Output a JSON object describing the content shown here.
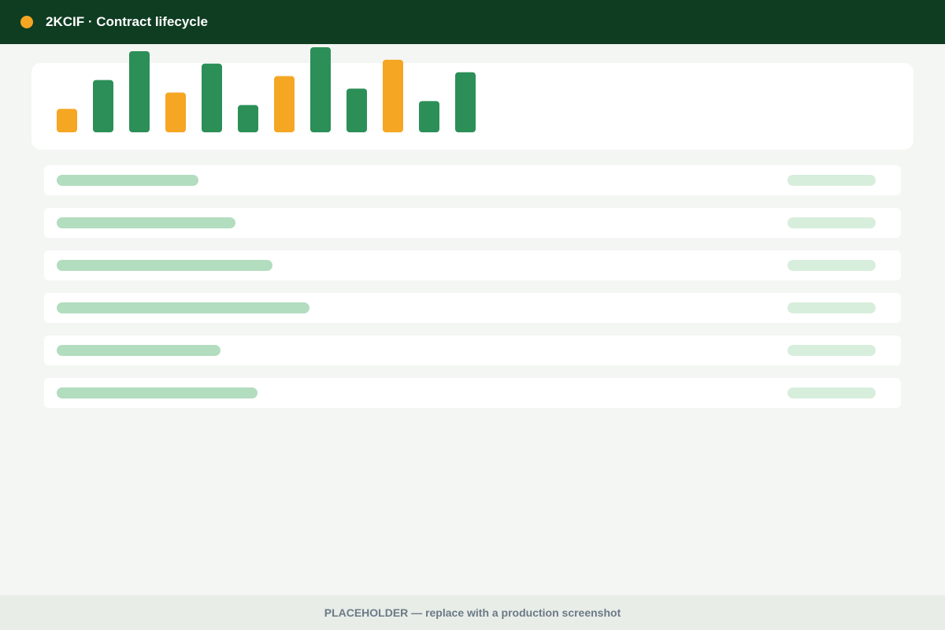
{
  "header": {
    "title": "2KCIF · Contract lifecycle",
    "brand_color": "#f5a623",
    "background_color": "#0f3d22"
  },
  "chart_data": {
    "type": "bar",
    "title": "",
    "xlabel": "",
    "ylabel": "",
    "ylim": [
      0,
      110
    ],
    "grid": false,
    "legend": "none",
    "categories": [
      "",
      "",
      "",
      "",
      "",
      "",
      "",
      "",
      "",
      "",
      "",
      ""
    ],
    "values": [
      30,
      67,
      104,
      51,
      88,
      35,
      72,
      109,
      56,
      93,
      40,
      77
    ],
    "bar_colors": [
      "#f5a623",
      "#2b8f57",
      "#2b8f57",
      "#f5a623",
      "#2b8f57",
      "#2b8f57",
      "#f5a623",
      "#2b8f57",
      "#2b8f57",
      "#f5a623",
      "#2b8f57",
      "#2b8f57"
    ]
  },
  "list": {
    "rows": [
      {
        "left_fill": 0.165,
        "right_fill": 1.0
      },
      {
        "left_fill": 0.209,
        "right_fill": 1.0
      },
      {
        "left_fill": 0.252,
        "right_fill": 1.0
      },
      {
        "left_fill": 0.295,
        "right_fill": 1.0
      },
      {
        "left_fill": 0.191,
        "right_fill": 1.0
      },
      {
        "left_fill": 0.234,
        "right_fill": 1.0
      }
    ],
    "left_bar_color": "#b2ddbf",
    "right_bar_color": "#d8eedd"
  },
  "footer": {
    "text": "PLACEHOLDER — replace with a production screenshot"
  }
}
